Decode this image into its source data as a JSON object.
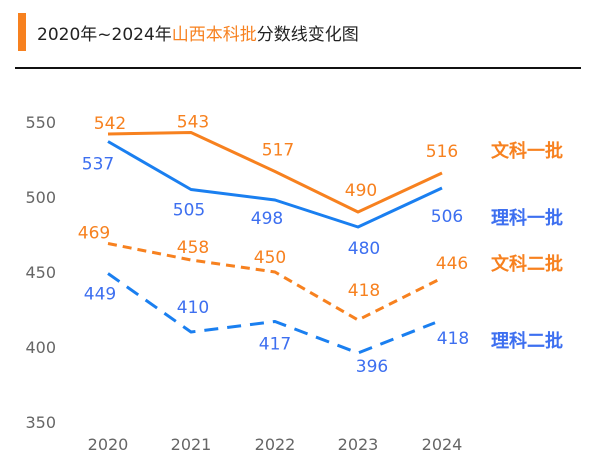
{
  "title": {
    "prefix": "2020年~2024年",
    "highlight": "山西本科批",
    "suffix": "分数线变化图"
  },
  "colors": {
    "orange": "#f7811f",
    "blue": "#1a7ff0",
    "blue_label": "#3d6ff0",
    "axis_text": "#666666"
  },
  "chart_data": {
    "type": "line",
    "categories": [
      "2020",
      "2021",
      "2022",
      "2023",
      "2024"
    ],
    "ylim": [
      350,
      550
    ],
    "yticks": [
      550,
      500,
      450,
      400,
      350
    ],
    "grid": false,
    "legend": "right (inline labels)",
    "series": [
      {
        "name": "文科一批",
        "values": [
          542,
          543,
          517,
          490,
          516
        ],
        "color": "#f7811f",
        "style": "solid"
      },
      {
        "name": "理科一批",
        "values": [
          537,
          505,
          498,
          480,
          506
        ],
        "color": "#1a7ff0",
        "style": "solid"
      },
      {
        "name": "文科二批",
        "values": [
          469,
          458,
          450,
          418,
          446
        ],
        "color": "#f7811f",
        "style": "dashed"
      },
      {
        "name": "理科二批",
        "values": [
          449,
          410,
          417,
          396,
          418
        ],
        "color": "#1a7ff0",
        "style": "dashed"
      }
    ]
  }
}
